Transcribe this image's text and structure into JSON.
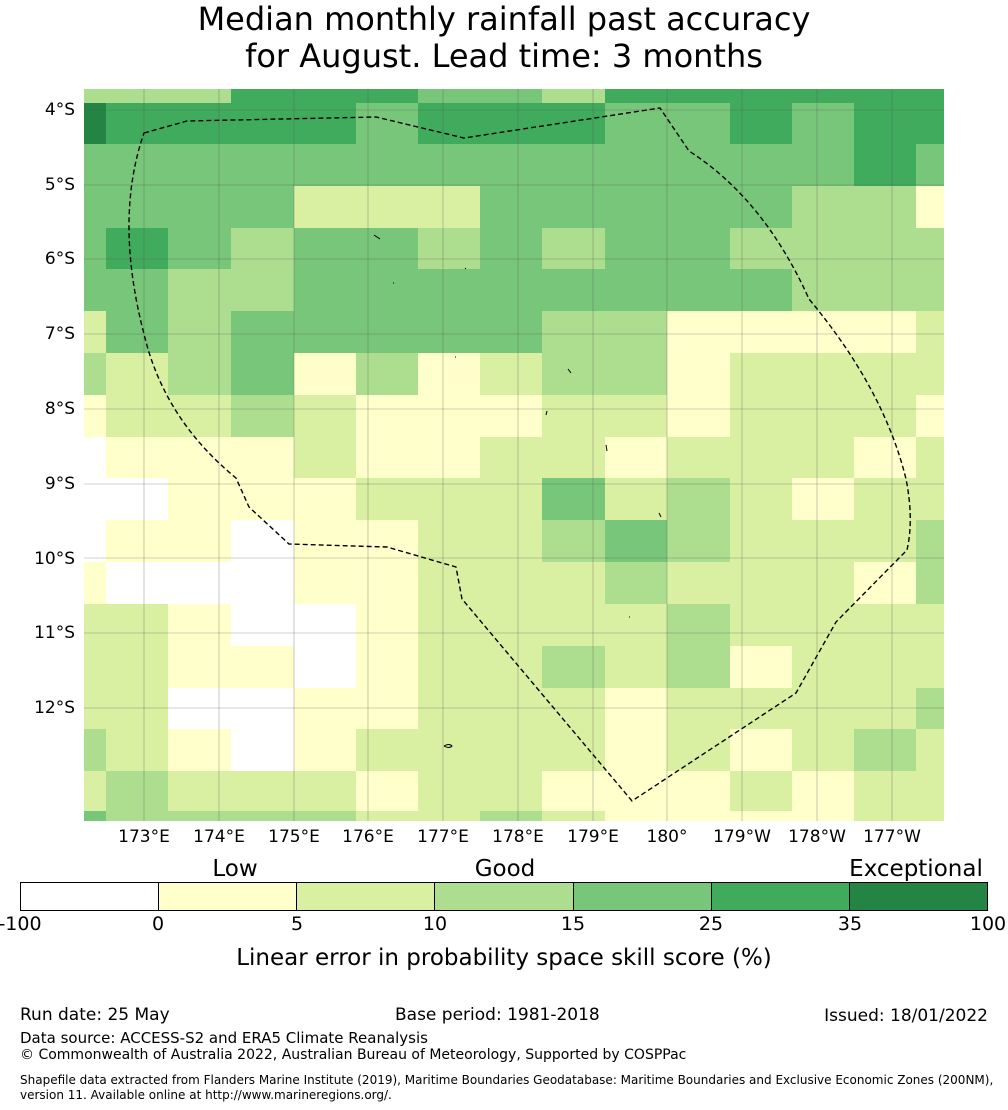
{
  "title_line1": "Median monthly rainfall past accuracy",
  "title_line2": "for August. Lead time: 3 months",
  "map": {
    "lat_labels": [
      "4°S",
      "5°S",
      "6°S",
      "7°S",
      "8°S",
      "9°S",
      "10°S",
      "11°S",
      "12°S"
    ],
    "lon_labels": [
      "173°E",
      "174°E",
      "175°E",
      "176°E",
      "177°E",
      "178°E",
      "179°E",
      "180°",
      "179°W",
      "178°W",
      "177°W"
    ],
    "region_outline": "Exclusive Economic Zone boundary (dashed)"
  },
  "colorbar": {
    "categories": [
      "Low",
      "Good",
      "Exceptional"
    ],
    "ticks": [
      "-100",
      "0",
      "5",
      "10",
      "15",
      "25",
      "35",
      "100"
    ],
    "colors": [
      "#ffffff",
      "#ffffcc",
      "#d9f0a3",
      "#addd8e",
      "#78c679",
      "#41ab5d",
      "#238443"
    ],
    "label": "Linear error in probability space skill score (%)"
  },
  "footer": {
    "run_date": "Run date: 25 May",
    "base_period": "Base period: 1981-2018",
    "issued": "Issued: 18/01/2022",
    "data_source": "Data source: ACCESS-S2 and ERA5 Climate Reanalysis",
    "copyright": "© Commonwealth of Australia 2022, Australian Bureau of Meteorology, Supported by COSPPac",
    "shapefile_line1": "Shapefile data extracted from Flanders Marine Institute (2019), Maritime Boundaries Geodatabase: Maritime Boundaries and Exclusive Economic Zones (200NM),",
    "shapefile_line2": "version 11. Available online at http://www.marineregions.org/."
  }
}
